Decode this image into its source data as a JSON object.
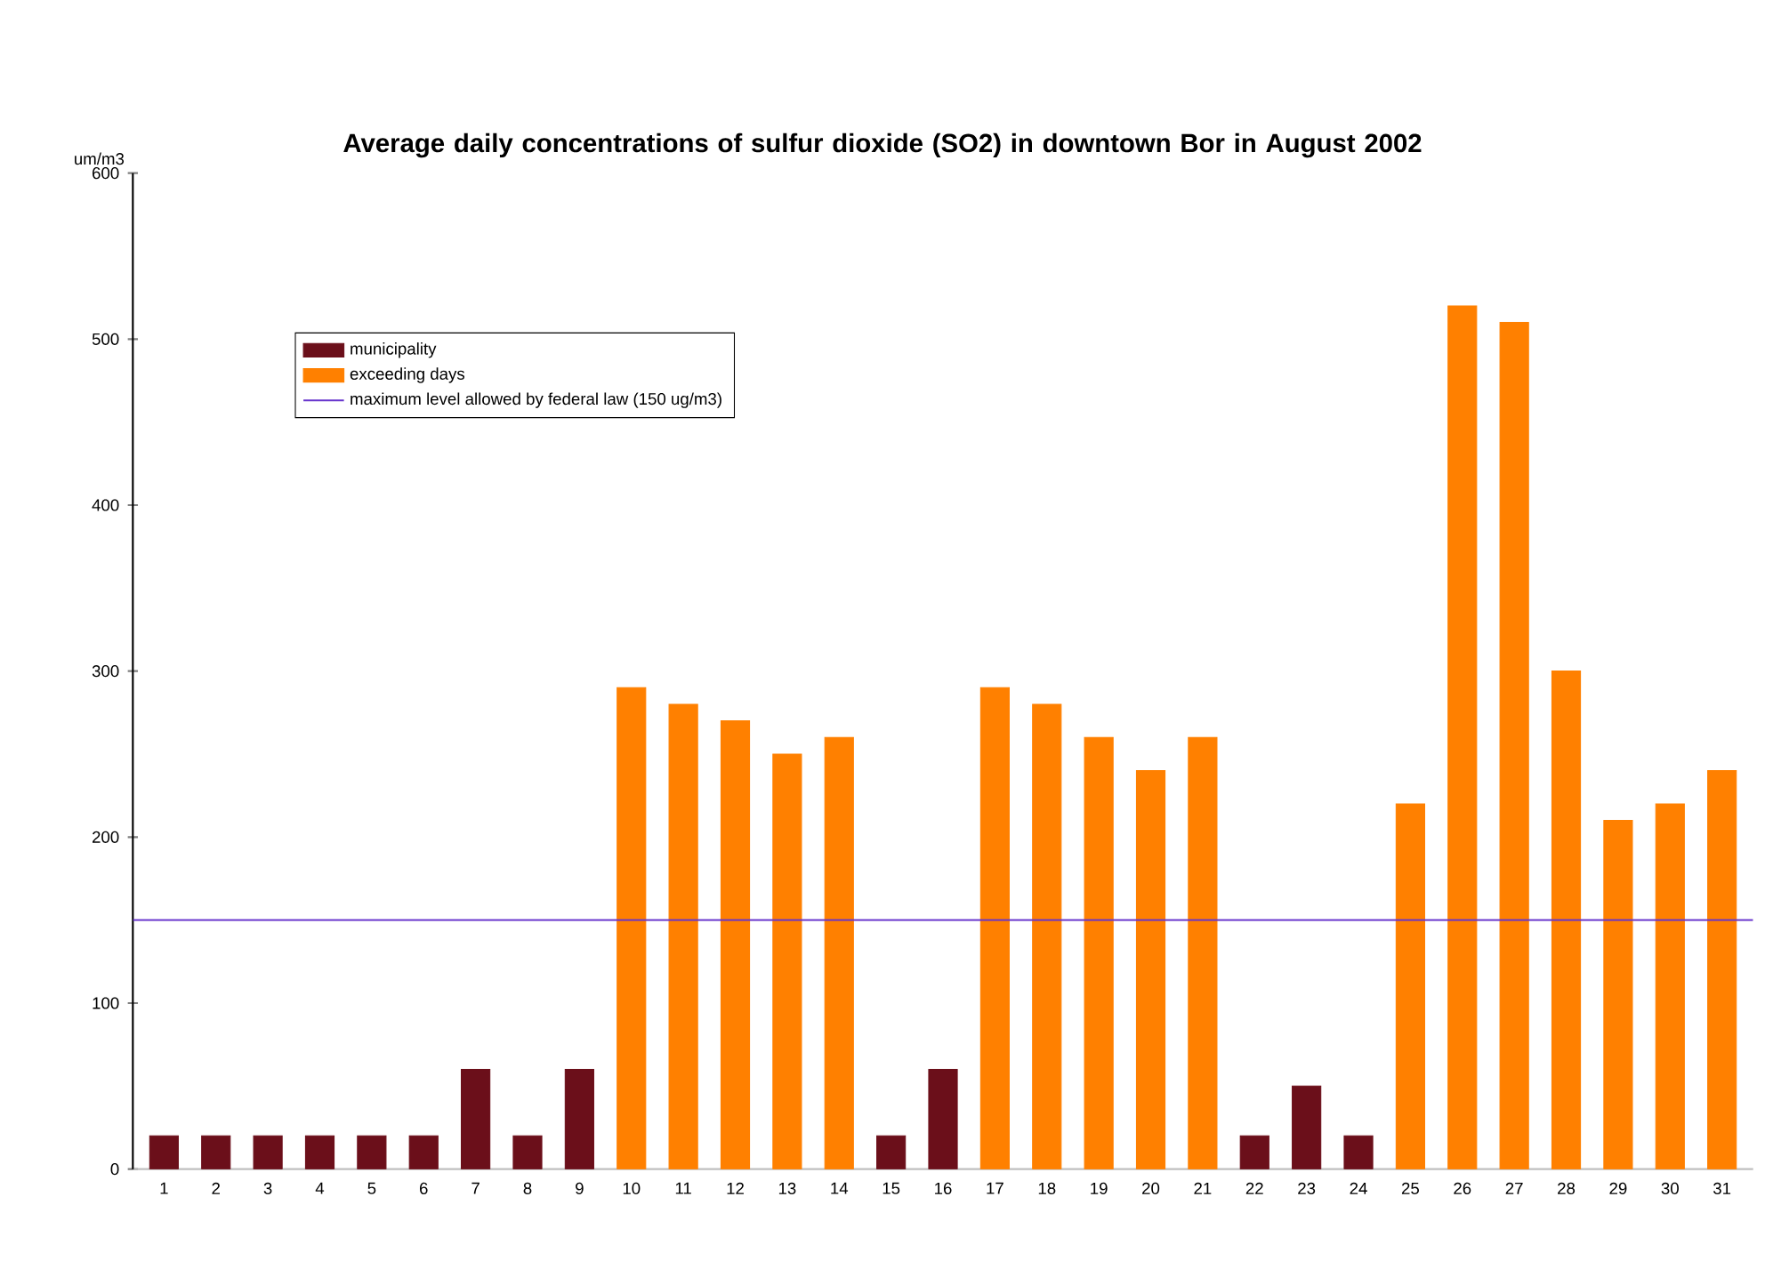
{
  "chart_data": {
    "type": "bar",
    "title": "Average daily concentrations of sulfur dioxide (SO2) in downtown Bor in August 2002",
    "ylabel": "um/m3",
    "categories": [
      "1",
      "2",
      "3",
      "4",
      "5",
      "6",
      "7",
      "8",
      "9",
      "10",
      "11",
      "12",
      "13",
      "14",
      "15",
      "16",
      "17",
      "18",
      "19",
      "20",
      "21",
      "22",
      "23",
      "24",
      "25",
      "26",
      "27",
      "28",
      "29",
      "30",
      "31"
    ],
    "series": [
      {
        "name": "municipality",
        "color": "#6b0f1a",
        "values": [
          20,
          20,
          20,
          20,
          20,
          20,
          60,
          20,
          60,
          null,
          null,
          null,
          null,
          null,
          20,
          60,
          null,
          null,
          null,
          null,
          null,
          20,
          50,
          20,
          null,
          null,
          null,
          null,
          null,
          null,
          null
        ]
      },
      {
        "name": "exceeding days",
        "color": "#ff8000",
        "values": [
          null,
          null,
          null,
          null,
          null,
          null,
          null,
          null,
          null,
          290,
          280,
          270,
          250,
          260,
          null,
          null,
          290,
          280,
          260,
          240,
          260,
          null,
          null,
          null,
          220,
          520,
          510,
          300,
          210,
          220,
          240
        ]
      }
    ],
    "ref_lines": [
      {
        "axis": "y",
        "value": 150,
        "label": "maximum level allowed by federal law (150 ug/m3)",
        "color": "#6633cc"
      }
    ],
    "ylim": [
      0,
      600
    ],
    "yticks": [
      0,
      100,
      200,
      300,
      400,
      500,
      600
    ],
    "grid": false,
    "legend": "top left"
  }
}
